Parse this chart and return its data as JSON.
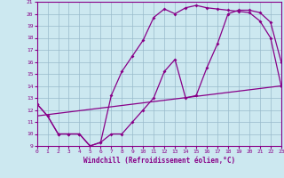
{
  "xlabel": "Windchill (Refroidissement éolien,°C)",
  "xlim": [
    0,
    23
  ],
  "ylim": [
    9,
    21
  ],
  "xticks": [
    0,
    1,
    2,
    3,
    4,
    5,
    6,
    7,
    8,
    9,
    10,
    11,
    12,
    13,
    14,
    15,
    16,
    17,
    18,
    19,
    20,
    21,
    22,
    23
  ],
  "yticks": [
    9,
    10,
    11,
    12,
    13,
    14,
    15,
    16,
    17,
    18,
    19,
    20,
    21
  ],
  "background_color": "#cce8f0",
  "grid_color": "#99bbcc",
  "line_color": "#880088",
  "line1_x": [
    0,
    1,
    2,
    3,
    4,
    5,
    6,
    7,
    8,
    9,
    10,
    11,
    12,
    13,
    14,
    15,
    16,
    17,
    18,
    19,
    20,
    21,
    22,
    23
  ],
  "line1_y": [
    12.5,
    11.5,
    10.0,
    10.0,
    10.0,
    9.0,
    9.3,
    10.0,
    10.0,
    11.0,
    12.0,
    13.0,
    15.2,
    16.2,
    13.0,
    13.2,
    15.5,
    17.5,
    20.0,
    20.3,
    20.3,
    20.1,
    19.3,
    16.0
  ],
  "line2_x": [
    0,
    1,
    2,
    3,
    4,
    5,
    6,
    7,
    8,
    9,
    10,
    11,
    12,
    13,
    14,
    15,
    16,
    17,
    18,
    19,
    20,
    21,
    22,
    23
  ],
  "line2_y": [
    12.5,
    11.5,
    10.0,
    10.0,
    10.0,
    9.0,
    9.3,
    13.2,
    15.2,
    16.5,
    17.8,
    19.7,
    20.4,
    20.0,
    20.5,
    20.7,
    20.5,
    20.4,
    20.3,
    20.2,
    20.1,
    19.4,
    18.0,
    14.0
  ],
  "line3_x": [
    0,
    23
  ],
  "line3_y": [
    11.5,
    14.0
  ],
  "marker_size": 2.0,
  "line_width": 0.9,
  "tick_fontsize": 4.5,
  "xlabel_fontsize": 5.5
}
